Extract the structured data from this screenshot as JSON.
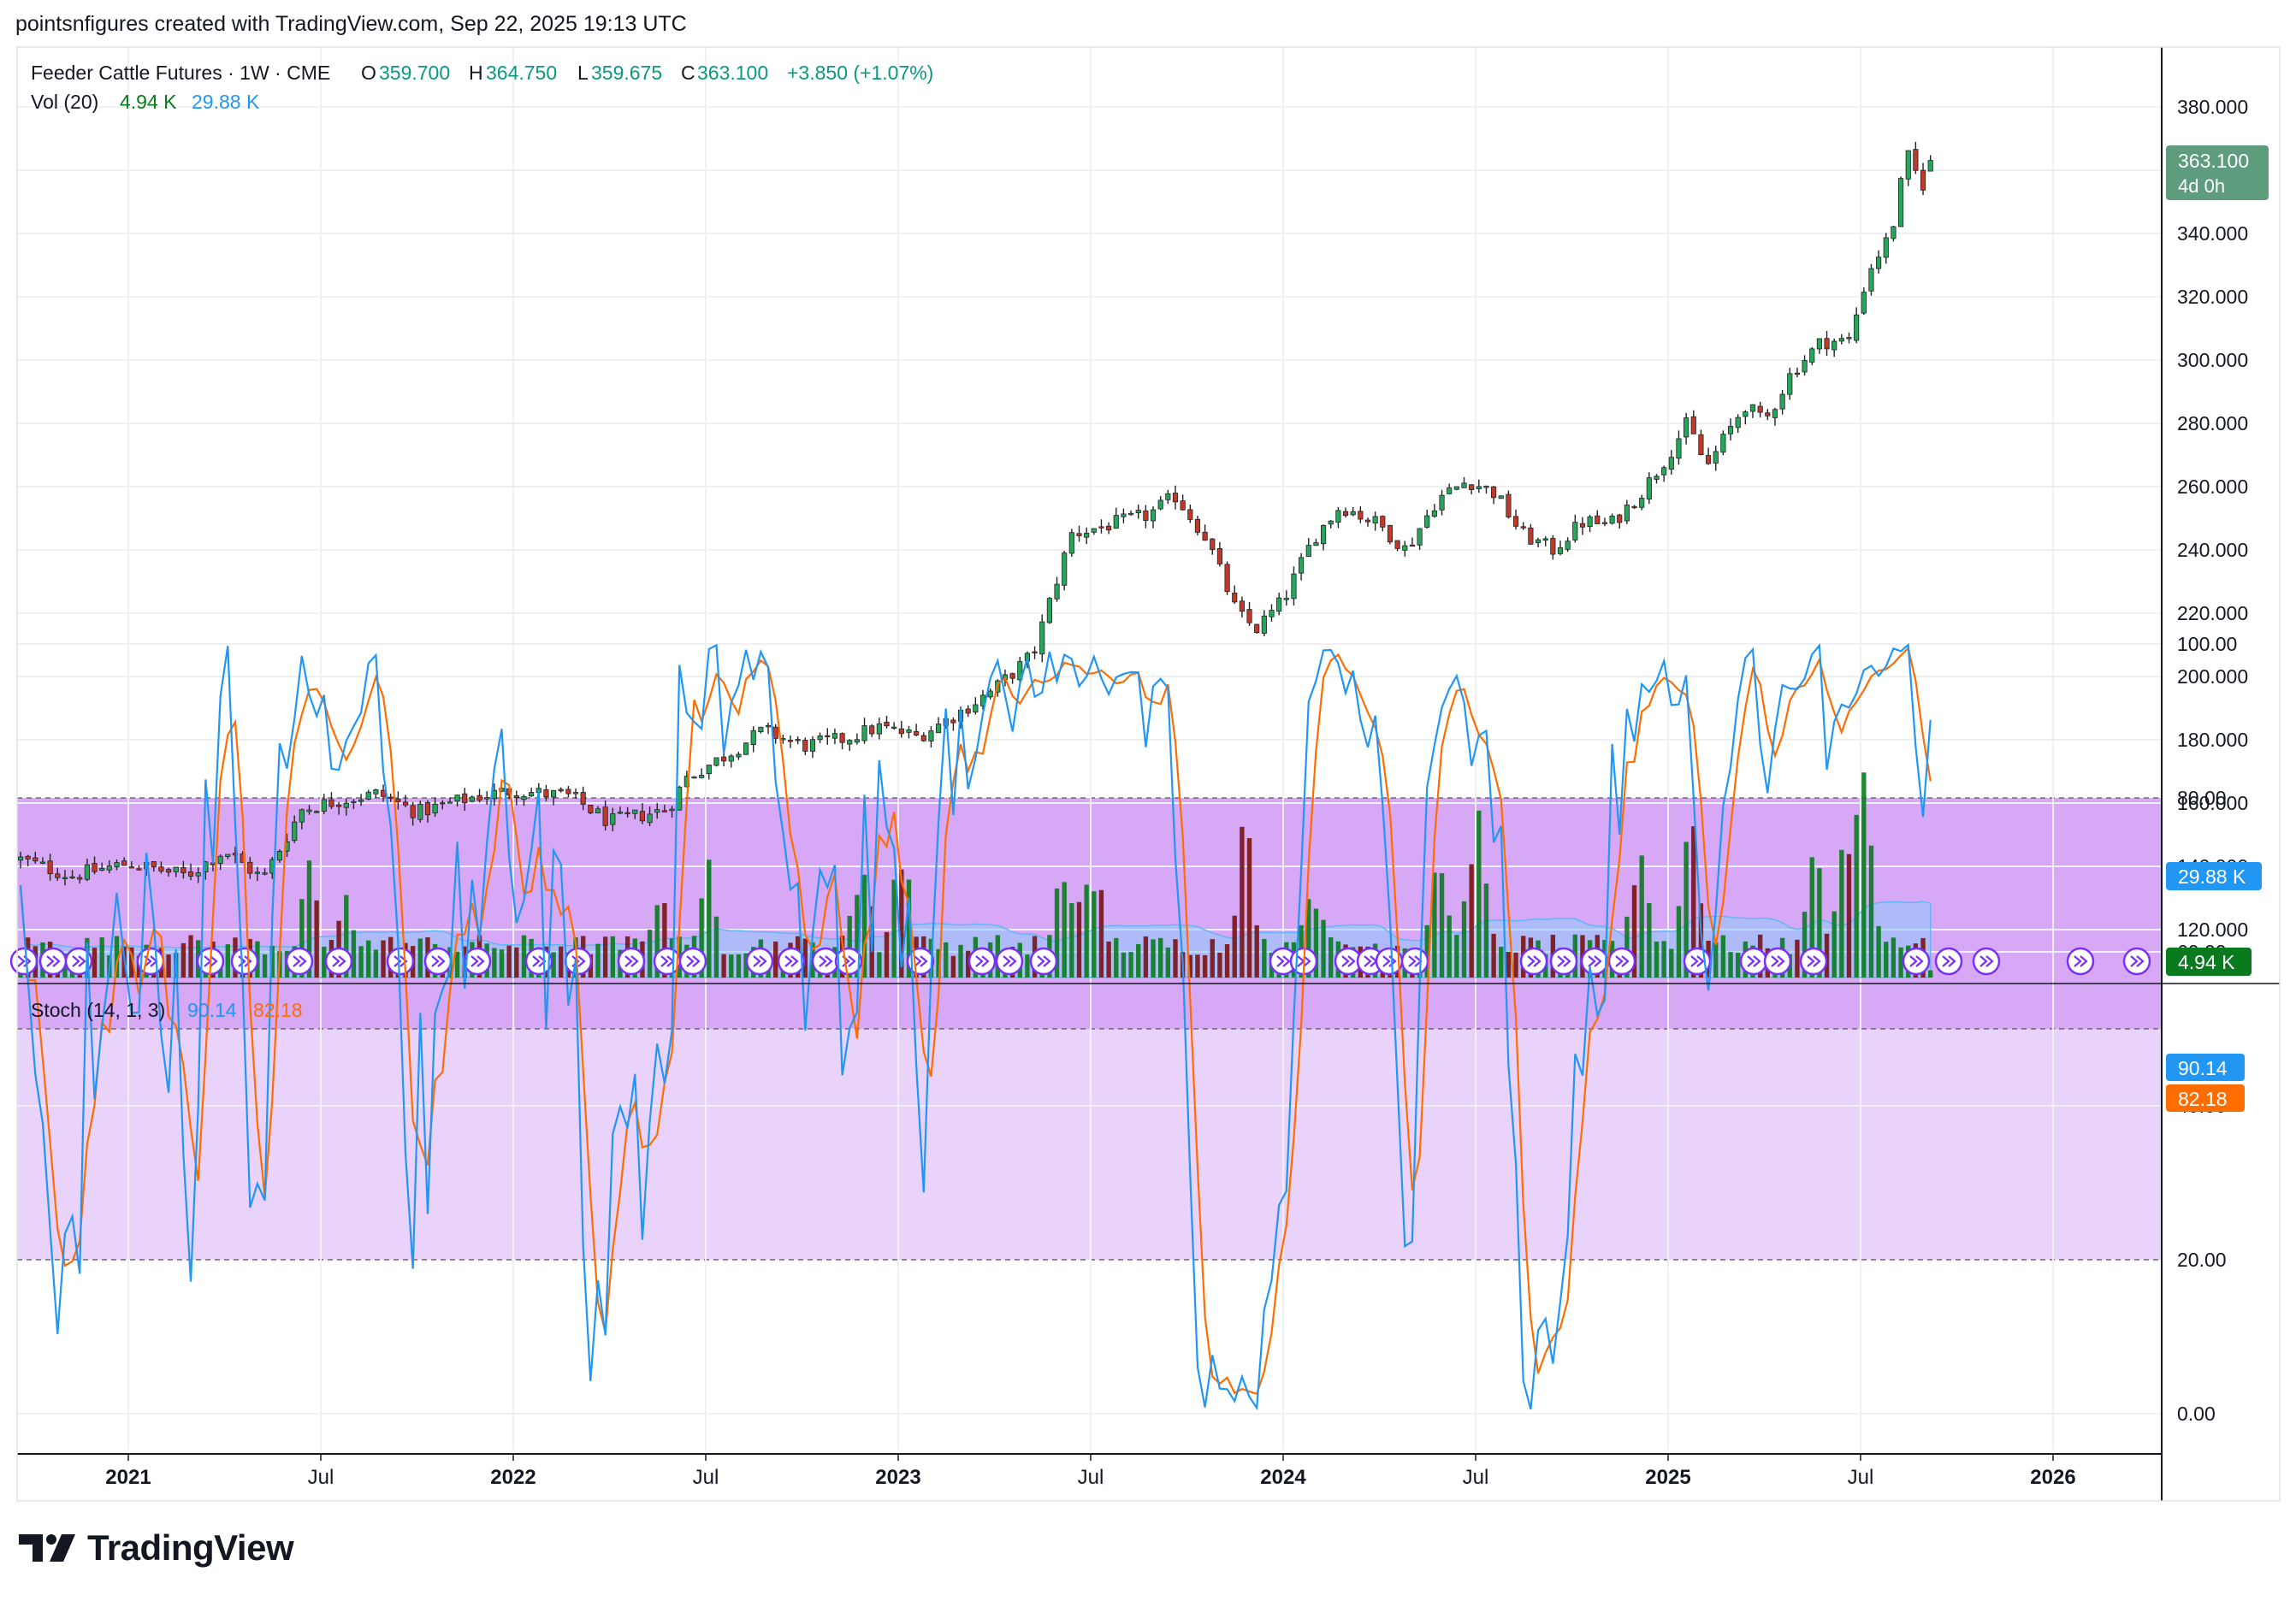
{
  "header": {
    "credit": "pointsnfigures created with TradingView.com, Sep 22, 2025 19:13 UTC"
  },
  "legend": {
    "symbol": "Feeder Cattle Futures · 1W · CME",
    "o_label": "O",
    "o": "359.700",
    "h_label": "H",
    "h": "364.750",
    "l_label": "L",
    "l": "359.675",
    "c_label": "C",
    "c": "363.100",
    "change": "+3.850 (+1.07%)",
    "vol_label": "Vol (20)",
    "vol": "4.94 K",
    "vol_ma": "29.88 K",
    "stoch_label": "Stoch (14, 1, 3)",
    "stoch_k": "90.14",
    "stoch_d": "82.18"
  },
  "price_axis": {
    "ticks": [
      "120.000",
      "140.000",
      "160.000",
      "180.000",
      "200.000",
      "220.000",
      "240.000",
      "260.000",
      "280.000",
      "300.000",
      "320.000",
      "340.000",
      "360.000",
      "380.000"
    ],
    "last_price": "363.100",
    "countdown": "4d 0h",
    "vol_ma_badge": "29.88 K",
    "vol_badge": "4.94 K"
  },
  "stoch_axis": {
    "ticks": [
      "0.00",
      "20.00",
      "40.00",
      "60.00",
      "80.00",
      "100.00"
    ],
    "k_badge": "90.14",
    "d_badge": "82.18"
  },
  "time_axis": {
    "ticks": [
      {
        "label": "2021",
        "t": 2021.0,
        "bold": true
      },
      {
        "label": "Jul",
        "t": 2021.5,
        "bold": false
      },
      {
        "label": "2022",
        "t": 2022.0,
        "bold": true
      },
      {
        "label": "Jul",
        "t": 2022.5,
        "bold": false
      },
      {
        "label": "2023",
        "t": 2023.0,
        "bold": true
      },
      {
        "label": "Jul",
        "t": 2023.5,
        "bold": false
      },
      {
        "label": "2024",
        "t": 2024.0,
        "bold": true
      },
      {
        "label": "Jul",
        "t": 2024.5,
        "bold": false
      },
      {
        "label": "2025",
        "t": 2025.0,
        "bold": true
      },
      {
        "label": "Jul",
        "t": 2025.5,
        "bold": false
      },
      {
        "label": "2026",
        "t": 2026.0,
        "bold": true
      }
    ]
  },
  "colors": {
    "up": "#089981",
    "down": "#f23645",
    "up_candle": "#26a65b",
    "down_candle": "#c0392b",
    "vol_up": "#0a7a1f",
    "vol_down": "#7a1212",
    "vol_ma_fill": "#90caf9",
    "k_line": "#2196f3",
    "d_line": "#ff6d00",
    "band_dark": "#d6a8f5",
    "band_light": "#ead3fb",
    "event_icon": "#7b2ff7"
  },
  "logo": {
    "text": "TradingView"
  },
  "chart_data": [
    {
      "type": "candlestick",
      "title": "Feeder Cattle Futures · 1W · CME",
      "x_range": [
        2020.7,
        2026.3
      ],
      "ylim": [
        108,
        392
      ],
      "anchors": [
        [
          2020.7,
          143
        ],
        [
          2020.85,
          137
        ],
        [
          2021.0,
          141
        ],
        [
          2021.15,
          137
        ],
        [
          2021.25,
          145
        ],
        [
          2021.35,
          136
        ],
        [
          2021.45,
          158
        ],
        [
          2021.55,
          161
        ],
        [
          2021.65,
          163
        ],
        [
          2021.75,
          157
        ],
        [
          2021.9,
          162
        ],
        [
          2022.0,
          164
        ],
        [
          2022.15,
          162
        ],
        [
          2022.25,
          154
        ],
        [
          2022.4,
          158
        ],
        [
          2022.45,
          168
        ],
        [
          2022.55,
          175
        ],
        [
          2022.65,
          183
        ],
        [
          2022.75,
          178
        ],
        [
          2022.85,
          180
        ],
        [
          2022.95,
          184
        ],
        [
          2023.05,
          181
        ],
        [
          2023.15,
          188
        ],
        [
          2023.25,
          196
        ],
        [
          2023.35,
          207
        ],
        [
          2023.4,
          226
        ],
        [
          2023.45,
          245
        ],
        [
          2023.55,
          248
        ],
        [
          2023.65,
          251
        ],
        [
          2023.72,
          257
        ],
        [
          2023.8,
          244
        ],
        [
          2023.88,
          220
        ],
        [
          2023.93,
          215
        ],
        [
          2024.0,
          224
        ],
        [
          2024.08,
          244
        ],
        [
          2024.15,
          254
        ],
        [
          2024.25,
          248
        ],
        [
          2024.32,
          240
        ],
        [
          2024.4,
          256
        ],
        [
          2024.48,
          262
        ],
        [
          2024.55,
          258
        ],
        [
          2024.62,
          245
        ],
        [
          2024.7,
          240
        ],
        [
          2024.78,
          249
        ],
        [
          2024.85,
          248
        ],
        [
          2024.93,
          258
        ],
        [
          2025.0,
          270
        ],
        [
          2025.05,
          280
        ],
        [
          2025.1,
          266
        ],
        [
          2025.2,
          286
        ],
        [
          2025.25,
          280
        ],
        [
          2025.32,
          296
        ],
        [
          2025.4,
          306
        ],
        [
          2025.47,
          306
        ],
        [
          2025.52,
          328
        ],
        [
          2025.58,
          340
        ],
        [
          2025.62,
          365
        ],
        [
          2025.66,
          355
        ],
        [
          2025.69,
          363
        ]
      ],
      "last": {
        "open": 359.7,
        "high": 364.75,
        "low": 359.675,
        "close": 363.1
      }
    },
    {
      "type": "bar",
      "title": "Vol (20)",
      "series": [
        {
          "name": "Vol",
          "last": 4.94
        },
        {
          "name": "MA",
          "last": 29.88
        }
      ],
      "spike_anchors": [
        [
          2021.47,
          0.55
        ],
        [
          2021.57,
          0.45
        ],
        [
          2022.38,
          0.55
        ],
        [
          2022.5,
          0.65
        ],
        [
          2022.9,
          0.72
        ],
        [
          2023.01,
          0.8
        ],
        [
          2023.43,
          0.6
        ],
        [
          2023.5,
          0.78
        ],
        [
          2023.9,
          0.85
        ],
        [
          2024.07,
          0.65
        ],
        [
          2024.4,
          0.65
        ],
        [
          2024.5,
          1.0
        ],
        [
          2024.93,
          0.75
        ],
        [
          2025.06,
          0.95
        ],
        [
          2025.38,
          0.7
        ],
        [
          2025.5,
          1.25
        ],
        [
          2025.45,
          0.6
        ]
      ]
    },
    {
      "type": "line",
      "title": "Stoch (14, 1, 3)",
      "ylim": [
        -5,
        108
      ],
      "bands": {
        "upper": 80,
        "middle": 50,
        "lower": 20
      },
      "series": [
        {
          "name": "%K",
          "last": 90.14
        },
        {
          "name": "%D",
          "last": 82.18
        }
      ]
    }
  ]
}
